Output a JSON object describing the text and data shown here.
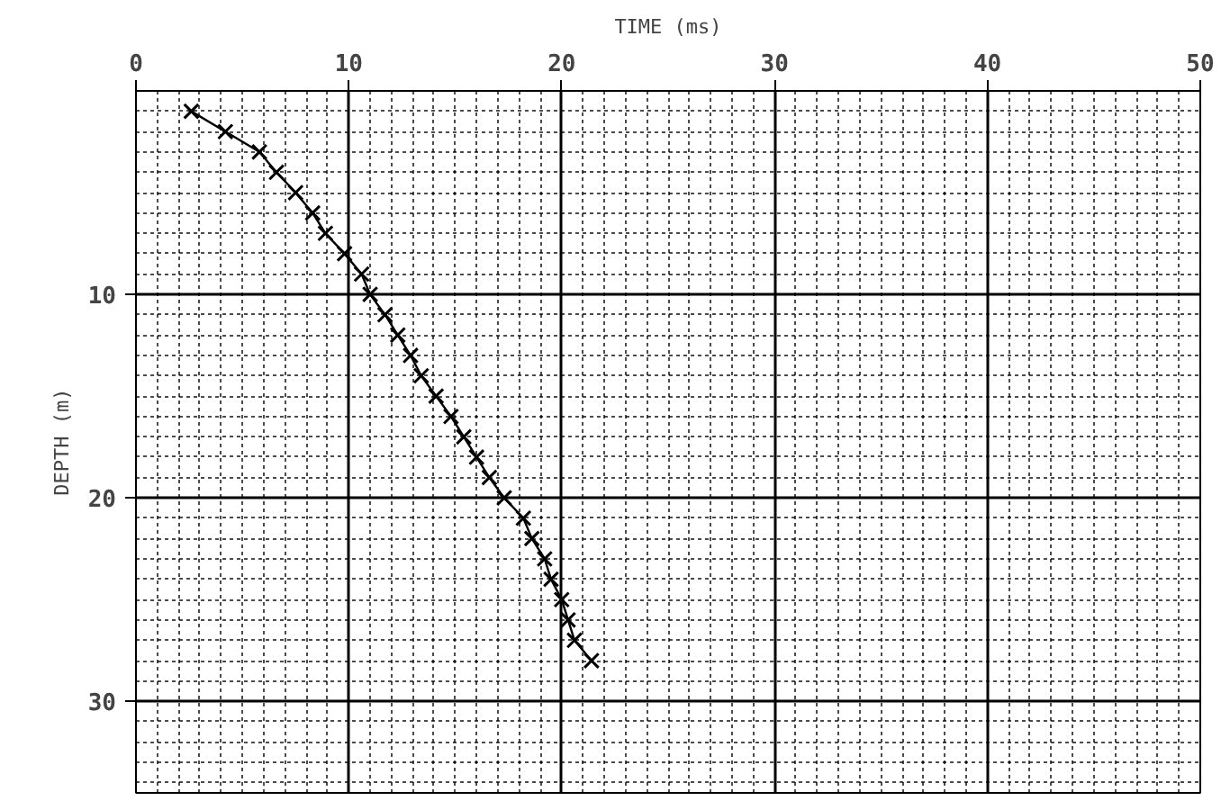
{
  "chart_data": {
    "type": "line",
    "xlabel": "TIME (ms)",
    "ylabel": "DEPTH (m)",
    "xlim": [
      0,
      50
    ],
    "xticks": [
      0,
      10,
      20,
      30,
      40,
      50
    ],
    "ylim": [
      34.5,
      0
    ],
    "yticks": [
      10,
      20,
      30
    ],
    "grid": true,
    "marker": "cross",
    "line_style": "solid",
    "series": [
      {
        "color": "#000000",
        "x": [
          2.6,
          4.2,
          5.8,
          6.6,
          7.5,
          8.3,
          8.9,
          9.8,
          10.6,
          11.0,
          11.7,
          12.3,
          12.9,
          13.4,
          14.1,
          14.8,
          15.4,
          16.0,
          16.6,
          17.3,
          18.2,
          18.6,
          19.2,
          19.5,
          20.0,
          20.3,
          20.6,
          21.4
        ],
        "values": [
          1,
          2,
          3,
          4,
          5,
          6,
          7,
          8,
          9,
          10,
          11,
          12,
          13,
          14,
          15,
          16,
          17,
          18,
          19,
          20,
          21,
          22,
          23,
          24,
          25,
          26,
          27,
          28
        ]
      }
    ]
  }
}
